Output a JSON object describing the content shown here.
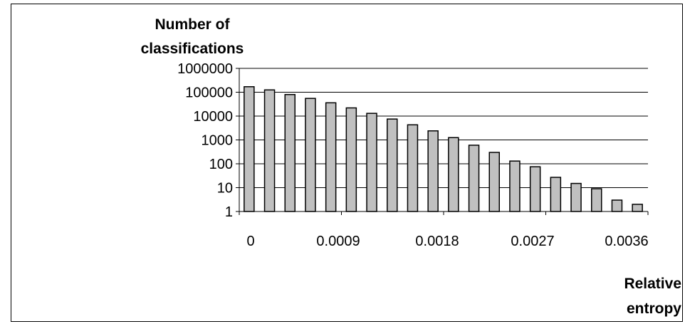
{
  "chart_data": {
    "type": "bar",
    "ylabel_lines": [
      "Number of",
      "classifications"
    ],
    "xlabel_lines": [
      "Relative",
      "entropy"
    ],
    "y_scale": "log",
    "ylim": [
      1,
      1000000
    ],
    "y_ticks": [
      "1",
      "10",
      "100",
      "1000",
      "10000",
      "100000",
      "1000000"
    ],
    "x_tick_labels": [
      "0",
      "0.0009",
      "0.0018",
      "0.0027",
      "0.0036"
    ],
    "grid": "horizontal",
    "bar_color": "#c0c0c0",
    "values": [
      170000,
      125000,
      80000,
      55000,
      36000,
      22000,
      13000,
      7500,
      4300,
      2400,
      1250,
      600,
      300,
      130,
      75,
      27,
      15,
      9,
      3,
      2
    ]
  }
}
